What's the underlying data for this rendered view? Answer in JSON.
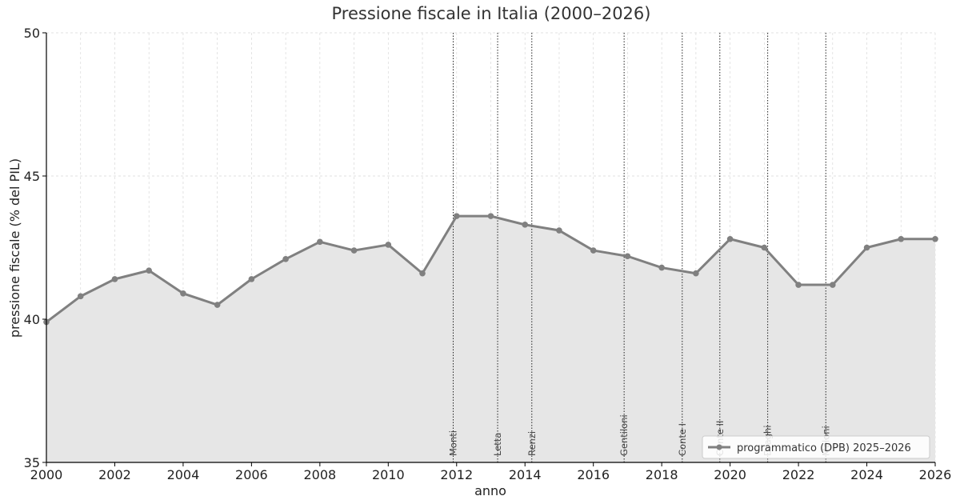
{
  "chart_data": {
    "type": "line",
    "title": "Pressione fiscale in Italia (2000–2026)",
    "xlabel": "anno",
    "ylabel": "pressione fiscale (% del PIL)",
    "xlim": [
      2000,
      2026
    ],
    "ylim": [
      35,
      50
    ],
    "x_ticks": [
      "2000",
      "2002",
      "2004",
      "2006",
      "2008",
      "2010",
      "2012",
      "2014",
      "2016",
      "2018",
      "2020",
      "2022",
      "2024",
      "2026"
    ],
    "y_ticks": [
      "35",
      "40",
      "45",
      "50"
    ],
    "grid": true,
    "legend_position": "bottom-right",
    "series": [
      {
        "name": "programmatico (DPB) 2025–2026",
        "color": "#808080",
        "x": [
          2000,
          2001,
          2002,
          2003,
          2004,
          2005,
          2006,
          2007,
          2008,
          2009,
          2010,
          2011,
          2012,
          2013,
          2014,
          2015,
          2016,
          2017,
          2018,
          2019,
          2020,
          2021,
          2022,
          2023,
          2024,
          2025,
          2026
        ],
        "values": [
          39.9,
          40.8,
          41.4,
          41.7,
          40.9,
          40.5,
          41.4,
          42.1,
          42.7,
          42.4,
          42.6,
          41.6,
          43.6,
          43.6,
          43.3,
          43.1,
          42.4,
          42.2,
          41.8,
          41.6,
          42.8,
          42.5,
          41.2,
          41.2,
          42.5,
          42.8,
          42.8
        ]
      }
    ],
    "annotations": [
      {
        "label": "Monti",
        "x": 2011.9
      },
      {
        "label": "Letta",
        "x": 2013.2
      },
      {
        "label": "Renzi",
        "x": 2014.2
      },
      {
        "label": "Gentiloni",
        "x": 2016.9
      },
      {
        "label": "Conte I",
        "x": 2018.6
      },
      {
        "label": "Conte II",
        "x": 2019.7
      },
      {
        "label": "Draghi",
        "x": 2021.1
      },
      {
        "label": "Meloni",
        "x": 2022.8
      }
    ]
  }
}
